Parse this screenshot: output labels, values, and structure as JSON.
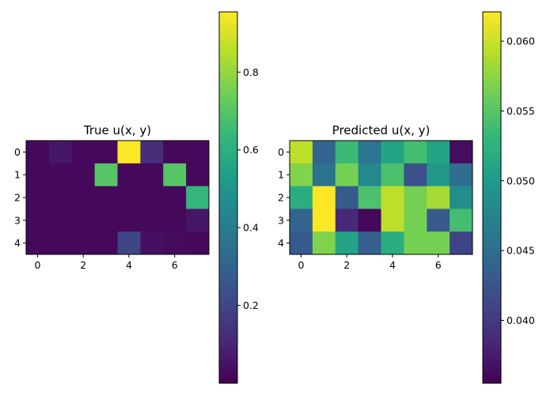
{
  "colormap": "viridis",
  "colors": {
    "viridis_stops": [
      "#440154",
      "#482878",
      "#3e4989",
      "#31688e",
      "#26828e",
      "#1f9e89",
      "#35b779",
      "#6ece58",
      "#b5de2b",
      "#fde725"
    ],
    "axis_color": "#000000",
    "background": "#ffffff"
  },
  "chart_data": [
    {
      "type": "heatmap",
      "title": "True u(x, y)",
      "xlabel": "",
      "ylabel": "",
      "x_ticks": [
        "0",
        "2",
        "4",
        "6"
      ],
      "y_ticks": [
        "0",
        "1",
        "2",
        "3",
        "4"
      ],
      "rows": 5,
      "cols": 8,
      "values": [
        [
          0.02,
          0.06,
          0.02,
          0.02,
          0.95,
          0.12,
          0.02,
          0.02
        ],
        [
          0.02,
          0.02,
          0.02,
          0.7,
          0.02,
          0.02,
          0.7,
          0.02
        ],
        [
          0.02,
          0.02,
          0.02,
          0.02,
          0.02,
          0.02,
          0.02,
          0.63
        ],
        [
          0.02,
          0.02,
          0.02,
          0.02,
          0.02,
          0.02,
          0.02,
          0.06
        ],
        [
          0.02,
          0.02,
          0.02,
          0.02,
          0.2,
          0.04,
          0.03,
          0.02
        ]
      ],
      "colorbar": {
        "vmin": 0.0,
        "vmax": 0.955,
        "ticks": [
          "0.2",
          "0.4",
          "0.6",
          "0.8"
        ]
      }
    },
    {
      "type": "heatmap",
      "title": "Predicted u(x, y)",
      "xlabel": "",
      "ylabel": "",
      "x_ticks": [
        "0",
        "2",
        "4",
        "6"
      ],
      "y_ticks": [
        "0",
        "1",
        "2",
        "3",
        "4"
      ],
      "rows": 5,
      "cols": 8,
      "values": [
        [
          0.0595,
          0.044,
          0.0535,
          0.046,
          0.051,
          0.054,
          0.051,
          0.0365
        ],
        [
          0.057,
          0.0455,
          0.0565,
          0.048,
          0.0545,
          0.042,
          0.0495,
          0.045
        ],
        [
          0.052,
          0.062,
          0.043,
          0.0545,
          0.0595,
          0.0565,
          0.0585,
          0.0485
        ],
        [
          0.044,
          0.062,
          0.0385,
          0.036,
          0.0595,
          0.0565,
          0.043,
          0.054
        ],
        [
          0.043,
          0.057,
          0.051,
          0.0435,
          0.052,
          0.0565,
          0.0565,
          0.041
        ]
      ],
      "colorbar": {
        "vmin": 0.0355,
        "vmax": 0.0621,
        "ticks": [
          "0.040",
          "0.045",
          "0.050",
          "0.055",
          "0.060"
        ]
      }
    }
  ]
}
